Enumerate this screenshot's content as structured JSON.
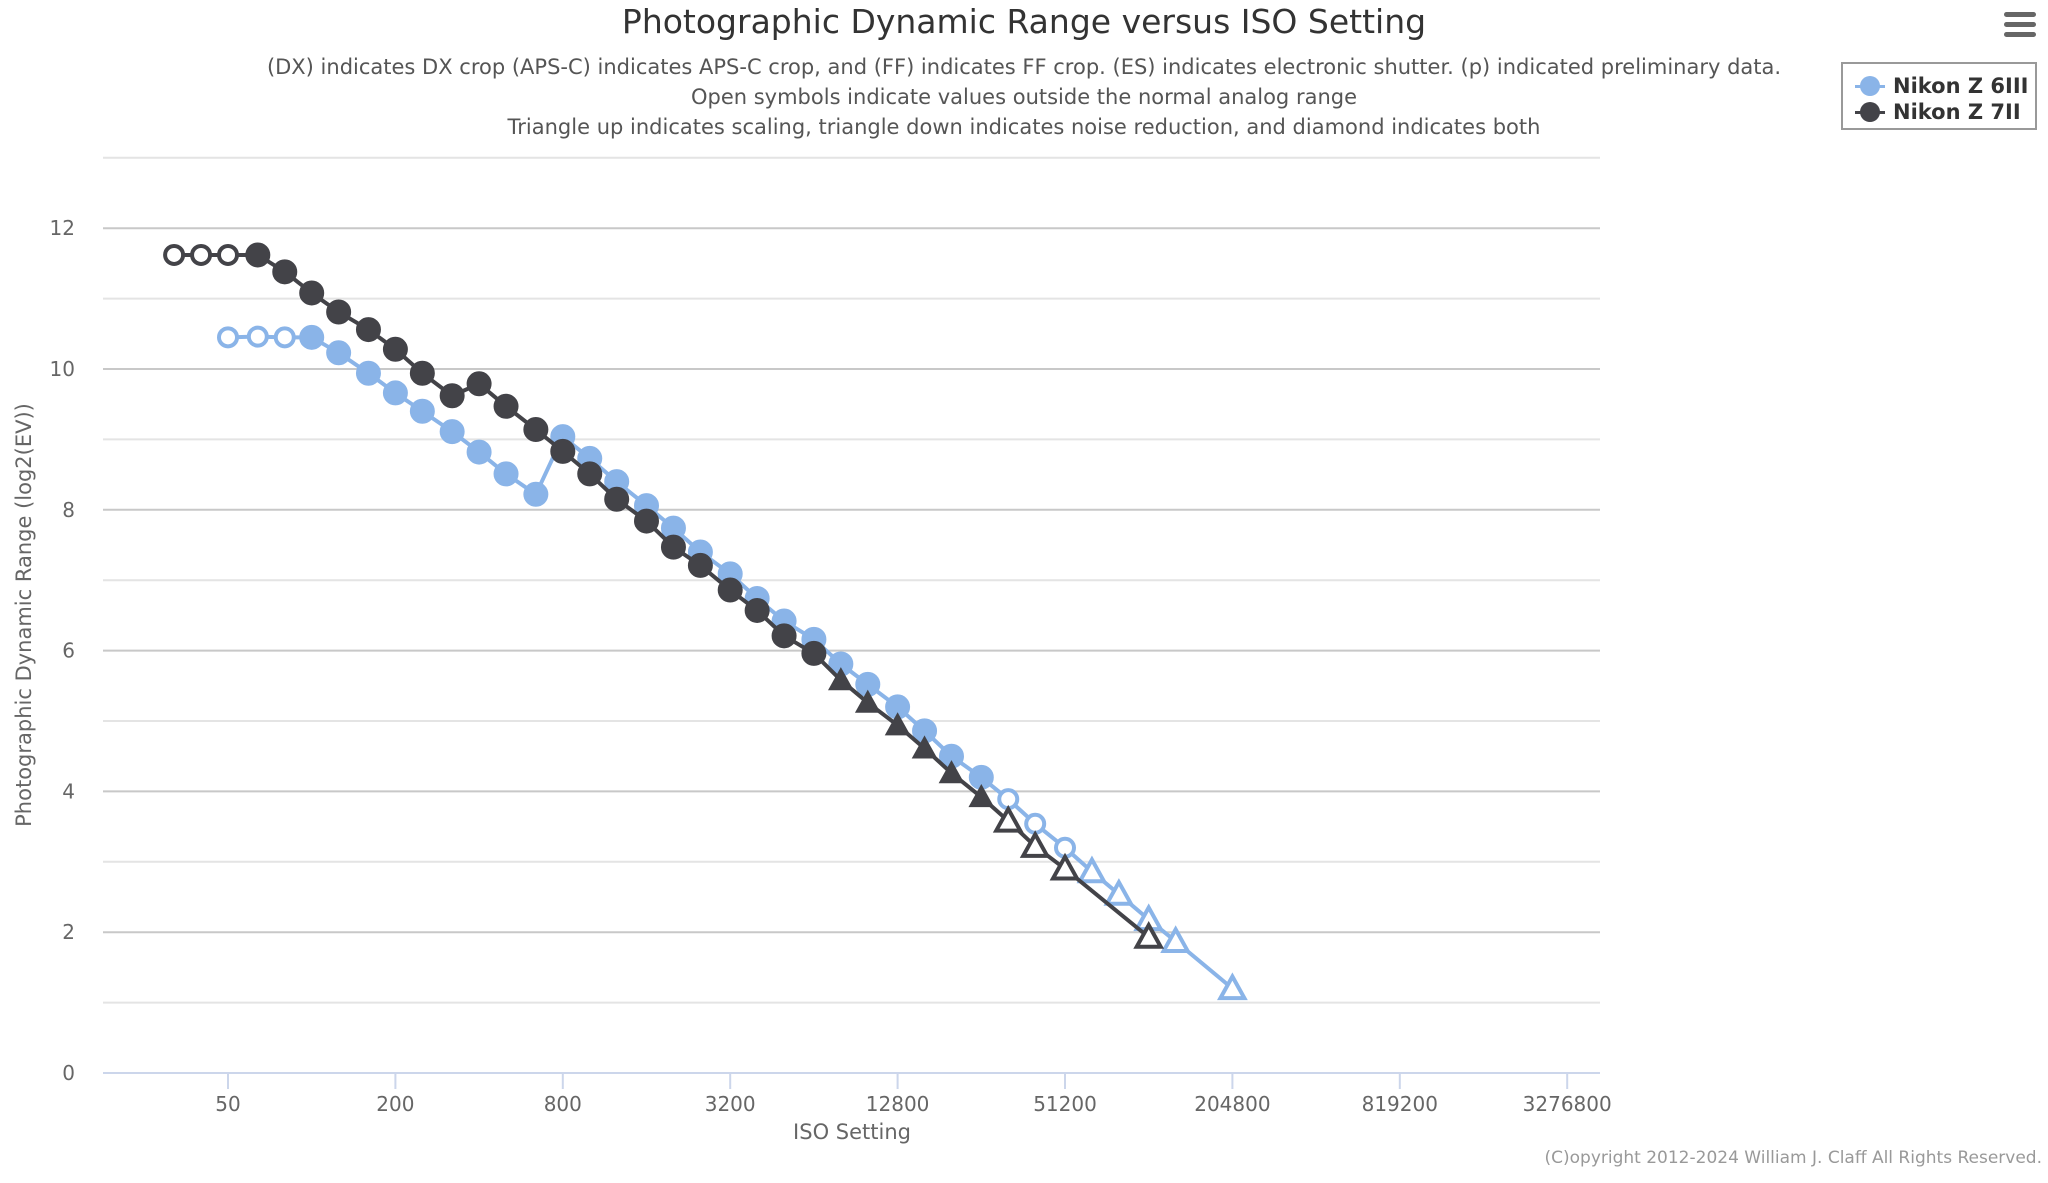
{
  "header": {
    "title": "Photographic Dynamic Range versus ISO Setting",
    "subtitle_lines": [
      "(DX) indicates DX crop (APS-C) indicates APS-C crop, and (FF) indicates FF crop. (ES) indicates electronic shutter. (p) indicated preliminary data.",
      "Open symbols indicate values outside the normal analog range",
      "Triangle up indicates scaling, triangle down indicates noise reduction, and diamond indicates both"
    ]
  },
  "menu": {
    "icon": "hamburger-menu-icon"
  },
  "legend": {
    "items": [
      {
        "label": "Nikon Z 6III",
        "color": "#8ab4e8"
      },
      {
        "label": "Nikon Z 7II",
        "color": "#434348"
      }
    ]
  },
  "footer": {
    "copyright": "(C)opyright 2012-2024 William J. Claff All Rights Reserved."
  },
  "chart_data": {
    "type": "line",
    "title": "Photographic Dynamic Range versus ISO Setting",
    "xlabel": "ISO Setting",
    "ylabel": "Photographic Dynamic Range (log2(EV))",
    "x_scale": "log2",
    "x_ticks": [
      50,
      200,
      800,
      3200,
      12800,
      51200,
      204800,
      819200,
      3276800
    ],
    "x_tick_labels": [
      "50",
      "200",
      "800",
      "3200",
      "12800",
      "51200",
      "204800",
      "819200",
      "3276800"
    ],
    "y_ticks": [
      0,
      2,
      4,
      6,
      8,
      10,
      12
    ],
    "ylim": [
      0,
      13
    ],
    "grid": true,
    "legend_position": "top-right",
    "marker_legend": {
      "circle_filled": "normal analog value",
      "circle_open": "outside normal analog range",
      "triangle_up": "scaling",
      "triangle_down": "noise reduction",
      "diamond": "scaling and noise reduction"
    },
    "series": [
      {
        "name": "Nikon Z 6III",
        "color": "#8ab4e8",
        "points": [
          {
            "iso": 50,
            "dr": 10.45,
            "marker": "circle",
            "open": true
          },
          {
            "iso": 64,
            "dr": 10.46,
            "marker": "circle",
            "open": true
          },
          {
            "iso": 80,
            "dr": 10.45,
            "marker": "circle",
            "open": true
          },
          {
            "iso": 100,
            "dr": 10.45,
            "marker": "circle",
            "open": false
          },
          {
            "iso": 125,
            "dr": 10.23,
            "marker": "circle",
            "open": false
          },
          {
            "iso": 160,
            "dr": 9.94,
            "marker": "circle",
            "open": false
          },
          {
            "iso": 200,
            "dr": 9.66,
            "marker": "circle",
            "open": false
          },
          {
            "iso": 250,
            "dr": 9.4,
            "marker": "circle",
            "open": false
          },
          {
            "iso": 320,
            "dr": 9.11,
            "marker": "circle",
            "open": false
          },
          {
            "iso": 400,
            "dr": 8.82,
            "marker": "circle",
            "open": false
          },
          {
            "iso": 500,
            "dr": 8.51,
            "marker": "circle",
            "open": false
          },
          {
            "iso": 640,
            "dr": 8.22,
            "marker": "circle",
            "open": false
          },
          {
            "iso": 800,
            "dr": 9.04,
            "marker": "circle",
            "open": false
          },
          {
            "iso": 1000,
            "dr": 8.73,
            "marker": "circle",
            "open": false
          },
          {
            "iso": 1250,
            "dr": 8.4,
            "marker": "circle",
            "open": false
          },
          {
            "iso": 1600,
            "dr": 8.06,
            "marker": "circle",
            "open": false
          },
          {
            "iso": 2000,
            "dr": 7.74,
            "marker": "circle",
            "open": false
          },
          {
            "iso": 2500,
            "dr": 7.4,
            "marker": "circle",
            "open": false
          },
          {
            "iso": 3200,
            "dr": 7.09,
            "marker": "circle",
            "open": false
          },
          {
            "iso": 4000,
            "dr": 6.74,
            "marker": "circle",
            "open": false
          },
          {
            "iso": 5000,
            "dr": 6.42,
            "marker": "circle",
            "open": false
          },
          {
            "iso": 6400,
            "dr": 6.16,
            "marker": "circle",
            "open": false
          },
          {
            "iso": 8000,
            "dr": 5.81,
            "marker": "circle",
            "open": false
          },
          {
            "iso": 10000,
            "dr": 5.52,
            "marker": "circle",
            "open": false
          },
          {
            "iso": 12800,
            "dr": 5.2,
            "marker": "circle",
            "open": false
          },
          {
            "iso": 16000,
            "dr": 4.86,
            "marker": "circle",
            "open": false
          },
          {
            "iso": 20000,
            "dr": 4.5,
            "marker": "circle",
            "open": false
          },
          {
            "iso": 25600,
            "dr": 4.2,
            "marker": "circle",
            "open": false
          },
          {
            "iso": 32000,
            "dr": 3.89,
            "marker": "circle",
            "open": true
          },
          {
            "iso": 40000,
            "dr": 3.54,
            "marker": "circle",
            "open": true
          },
          {
            "iso": 51200,
            "dr": 3.2,
            "marker": "circle",
            "open": true
          },
          {
            "iso": 64000,
            "dr": 2.86,
            "marker": "triangle-up",
            "open": true
          },
          {
            "iso": 80000,
            "dr": 2.54,
            "marker": "triangle-up",
            "open": true
          },
          {
            "iso": 102400,
            "dr": 2.18,
            "marker": "triangle-up",
            "open": true
          },
          {
            "iso": 128000,
            "dr": 1.87,
            "marker": "triangle-up",
            "open": true
          },
          {
            "iso": 204800,
            "dr": 1.2,
            "marker": "triangle-up",
            "open": true
          }
        ]
      },
      {
        "name": "Nikon Z 7II",
        "color": "#434348",
        "points": [
          {
            "iso": 32,
            "dr": 11.62,
            "marker": "circle",
            "open": true
          },
          {
            "iso": 40,
            "dr": 11.62,
            "marker": "circle",
            "open": true
          },
          {
            "iso": 50,
            "dr": 11.62,
            "marker": "circle",
            "open": true
          },
          {
            "iso": 64,
            "dr": 11.62,
            "marker": "circle",
            "open": false
          },
          {
            "iso": 80,
            "dr": 11.38,
            "marker": "circle",
            "open": false
          },
          {
            "iso": 100,
            "dr": 11.08,
            "marker": "circle",
            "open": false
          },
          {
            "iso": 125,
            "dr": 10.81,
            "marker": "circle",
            "open": false
          },
          {
            "iso": 160,
            "dr": 10.56,
            "marker": "circle",
            "open": false
          },
          {
            "iso": 200,
            "dr": 10.28,
            "marker": "circle",
            "open": false
          },
          {
            "iso": 250,
            "dr": 9.94,
            "marker": "circle",
            "open": false
          },
          {
            "iso": 320,
            "dr": 9.62,
            "marker": "circle",
            "open": false
          },
          {
            "iso": 400,
            "dr": 9.79,
            "marker": "circle",
            "open": false
          },
          {
            "iso": 500,
            "dr": 9.47,
            "marker": "circle",
            "open": false
          },
          {
            "iso": 640,
            "dr": 9.14,
            "marker": "circle",
            "open": false
          },
          {
            "iso": 800,
            "dr": 8.83,
            "marker": "circle",
            "open": false
          },
          {
            "iso": 1000,
            "dr": 8.51,
            "marker": "circle",
            "open": false
          },
          {
            "iso": 1250,
            "dr": 8.15,
            "marker": "circle",
            "open": false
          },
          {
            "iso": 1600,
            "dr": 7.84,
            "marker": "circle",
            "open": false
          },
          {
            "iso": 2000,
            "dr": 7.47,
            "marker": "circle",
            "open": false
          },
          {
            "iso": 2500,
            "dr": 7.21,
            "marker": "circle",
            "open": false
          },
          {
            "iso": 3200,
            "dr": 6.86,
            "marker": "circle",
            "open": false
          },
          {
            "iso": 4000,
            "dr": 6.57,
            "marker": "circle",
            "open": false
          },
          {
            "iso": 5000,
            "dr": 6.21,
            "marker": "circle",
            "open": false
          },
          {
            "iso": 6400,
            "dr": 5.96,
            "marker": "circle",
            "open": false
          },
          {
            "iso": 8000,
            "dr": 5.58,
            "marker": "triangle-up",
            "open": false
          },
          {
            "iso": 10000,
            "dr": 5.26,
            "marker": "triangle-up",
            "open": false
          },
          {
            "iso": 12800,
            "dr": 4.94,
            "marker": "triangle-up",
            "open": false
          },
          {
            "iso": 16000,
            "dr": 4.61,
            "marker": "triangle-up",
            "open": false
          },
          {
            "iso": 20000,
            "dr": 4.26,
            "marker": "triangle-up",
            "open": false
          },
          {
            "iso": 25600,
            "dr": 3.92,
            "marker": "triangle-up",
            "open": false
          },
          {
            "iso": 32000,
            "dr": 3.58,
            "marker": "triangle-up",
            "open": true
          },
          {
            "iso": 40000,
            "dr": 3.22,
            "marker": "triangle-up",
            "open": true
          },
          {
            "iso": 51200,
            "dr": 2.9,
            "marker": "triangle-up",
            "open": true
          },
          {
            "iso": 102400,
            "dr": 1.93,
            "marker": "triangle-up",
            "open": true
          }
        ]
      }
    ]
  }
}
